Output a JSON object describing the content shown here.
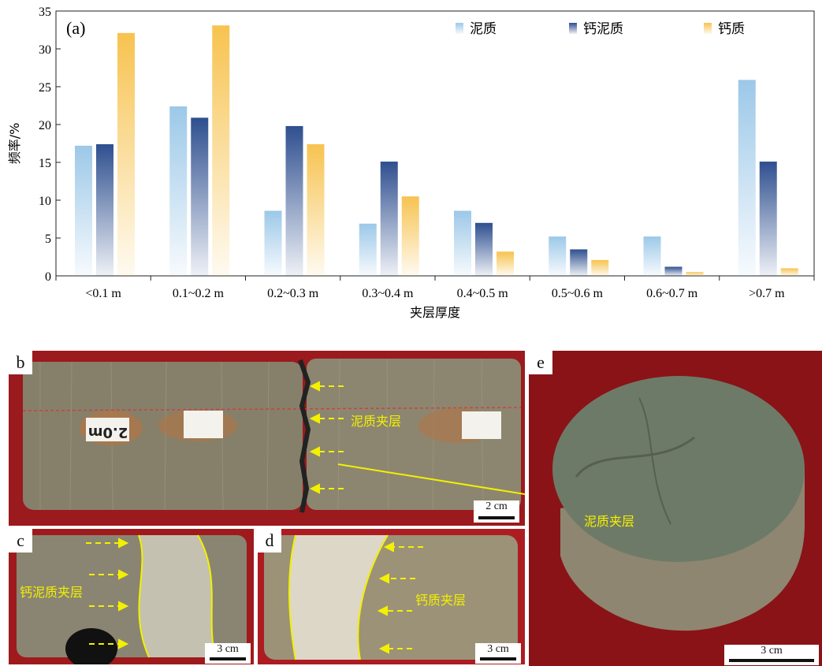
{
  "chart_data": {
    "type": "bar",
    "panel_label": "(a)",
    "xlabel": "夹层厚度",
    "ylabel": "频率/%",
    "ylim": [
      0,
      35
    ],
    "yticks": [
      0,
      5,
      10,
      15,
      20,
      25,
      30,
      35
    ],
    "legend_position": "top-right",
    "categories": [
      "<0.1 m",
      "0.1~0.2 m",
      "0.2~0.3 m",
      "0.3~0.4 m",
      "0.4~0.5 m",
      "0.5~0.6 m",
      "0.6~0.7 m",
      ">0.7 m"
    ],
    "series": [
      {
        "name": "泥质",
        "color": "#9cc8e8",
        "values": [
          17.2,
          22.4,
          8.6,
          6.9,
          8.6,
          5.2,
          5.2,
          25.9
        ]
      },
      {
        "name": "钙泥质",
        "color": "#2e4f8f",
        "values": [
          17.4,
          20.9,
          19.8,
          15.1,
          7.0,
          3.5,
          1.2,
          15.1
        ]
      },
      {
        "name": "钙质",
        "color": "#f7c350",
        "values": [
          32.1,
          33.1,
          17.4,
          10.5,
          3.2,
          2.1,
          0.5,
          1.0
        ]
      }
    ]
  },
  "photos": {
    "b": {
      "letter": "b",
      "scale": "2 cm",
      "annotation": "泥质夹层",
      "label_depth": "2.0m"
    },
    "c": {
      "letter": "c",
      "scale": "3 cm",
      "annotation": "钙泥质夹层"
    },
    "d": {
      "letter": "d",
      "scale": "3 cm",
      "annotation": "钙质夹层"
    },
    "e": {
      "letter": "e",
      "scale": "3 cm",
      "annotation": "泥质夹层"
    }
  },
  "colors": {
    "annotation_yellow": "#f3f000",
    "background_red": "#8e1418",
    "core_gray": "#7b7760"
  }
}
